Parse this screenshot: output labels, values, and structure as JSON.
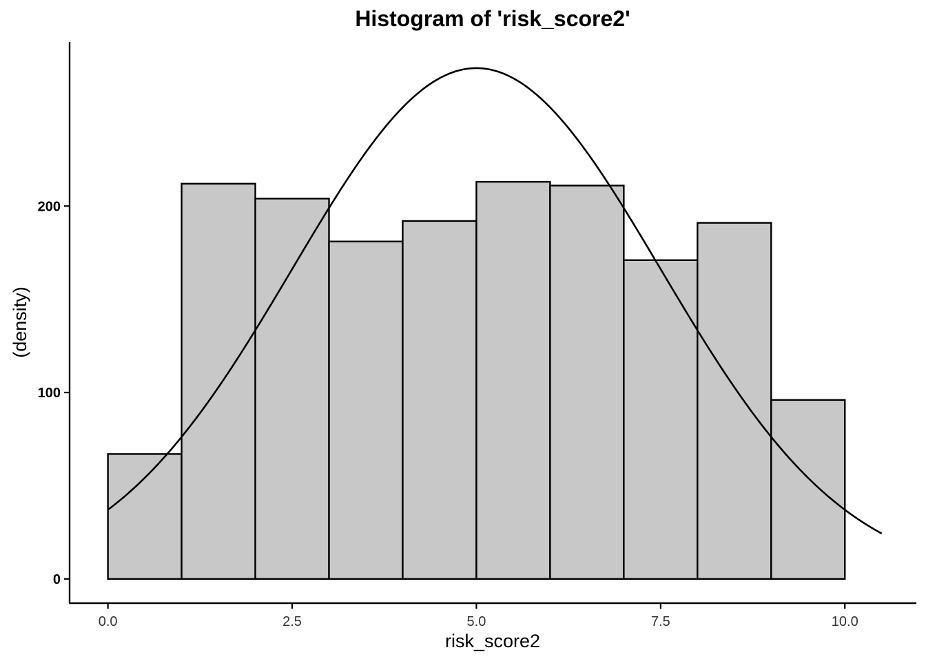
{
  "chart_data": {
    "type": "bar",
    "title": "Histogram of 'risk_score2'",
    "xlabel": "risk_score2",
    "ylabel": "(density)",
    "xlim": [
      -0.52,
      10.97
    ],
    "ylim": [
      -13,
      288
    ],
    "x_ticks": [
      0.0,
      2.5,
      5.0,
      7.5,
      10.0
    ],
    "x_tick_labels": [
      "0.0",
      "2.5",
      "5.0",
      "7.5",
      "10.0"
    ],
    "y_ticks": [
      0,
      100,
      200
    ],
    "y_tick_labels": [
      "0",
      "100",
      "200"
    ],
    "bins": [
      {
        "x0": 0,
        "x1": 1,
        "value": 67
      },
      {
        "x0": 1,
        "x1": 2,
        "value": 212
      },
      {
        "x0": 2,
        "x1": 3,
        "value": 204
      },
      {
        "x0": 3,
        "x1": 4,
        "value": 181
      },
      {
        "x0": 4,
        "x1": 5,
        "value": 192
      },
      {
        "x0": 5,
        "x1": 6,
        "value": 213
      },
      {
        "x0": 6,
        "x1": 7,
        "value": 211
      },
      {
        "x0": 7,
        "x1": 8,
        "value": 171
      },
      {
        "x0": 8,
        "x1": 9,
        "value": 191
      },
      {
        "x0": 9,
        "x1": 10,
        "value": 96
      }
    ],
    "overlay_curve": {
      "type": "normal",
      "mean": 5.0,
      "sd": 2.5,
      "peak": 274,
      "x_range": [
        0.0,
        10.5
      ]
    },
    "grid": false,
    "bar_fill": "#c8c8c8",
    "bar_stroke": "#000000"
  }
}
